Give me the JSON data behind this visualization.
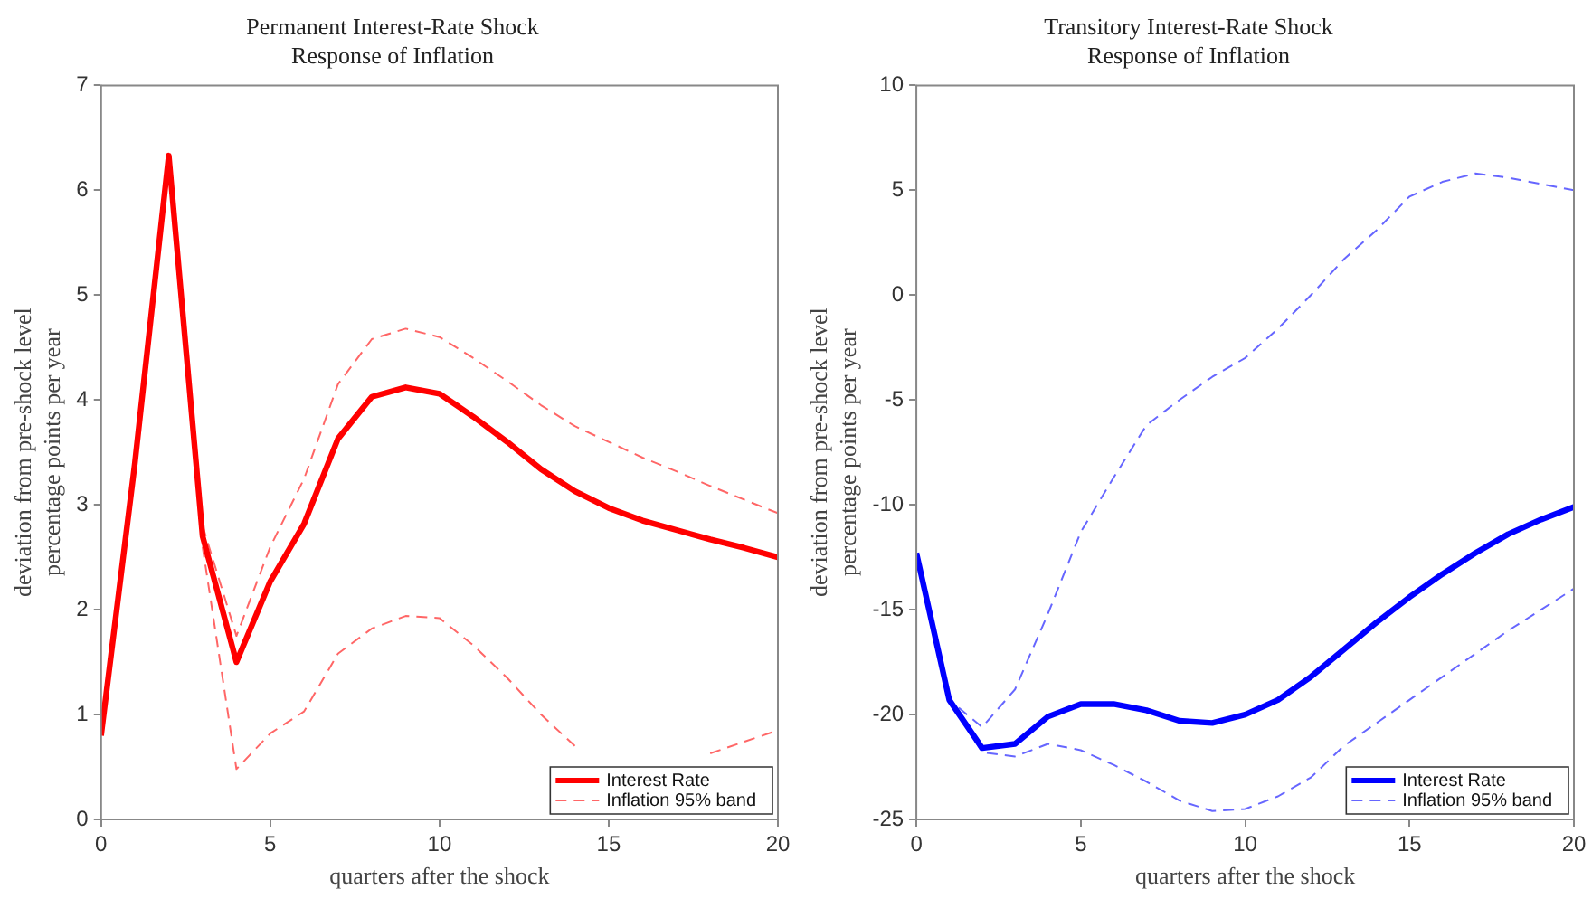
{
  "chart_data": [
    {
      "type": "line",
      "title": "Permanent Interest-Rate Shock",
      "subtitle": "Response of Inflation",
      "xlabel": "quarters after the shock",
      "ylabel": "deviation from pre-shock level\npercentage points per year",
      "x": [
        0,
        1,
        2,
        3,
        4,
        5,
        6,
        7,
        8,
        9,
        10,
        11,
        12,
        13,
        14,
        15,
        16,
        17,
        18,
        19,
        20
      ],
      "xlim": [
        0,
        20
      ],
      "xticks": [
        0,
        5,
        10,
        15,
        20
      ],
      "ylim": [
        0,
        7
      ],
      "yticks": [
        0,
        1,
        2,
        3,
        4,
        5,
        6,
        7
      ],
      "grid": false,
      "legend": "bottom right",
      "series": [
        {
          "name": "Interest Rate",
          "color": "#ff0000",
          "line_style": "solid",
          "values": [
            0.8,
            3.4,
            6.33,
            2.7,
            1.5,
            2.27,
            2.82,
            3.63,
            4.03,
            4.12,
            4.06,
            3.84,
            3.6,
            3.34,
            3.13,
            2.97,
            2.85,
            2.76,
            2.67,
            2.59,
            2.5
          ]
        },
        {
          "name": "Inflation 95% band",
          "color": "#ff6666",
          "line_style": "dashed",
          "values": [
            null,
            null,
            null,
            2.8,
            1.75,
            2.6,
            3.25,
            4.15,
            4.58,
            4.68,
            4.6,
            4.4,
            4.18,
            3.95,
            3.75,
            3.6,
            3.45,
            3.32,
            3.18,
            3.05,
            2.92
          ]
        },
        {
          "color": "#ff6666",
          "line_style": "dashed",
          "values": [
            null,
            null,
            null,
            2.6,
            0.48,
            0.82,
            1.03,
            1.58,
            1.82,
            1.94,
            1.92,
            1.66,
            1.35,
            1.0,
            0.7,
            null,
            null,
            null,
            0.63,
            0.74,
            0.85
          ]
        }
      ]
    },
    {
      "type": "line",
      "title": "Transitory Interest-Rate Shock",
      "subtitle": "Response of Inflation",
      "xlabel": "quarters after the shock",
      "ylabel": "deviation from pre-shock level\npercentage points per year",
      "x": [
        0,
        1,
        2,
        3,
        4,
        5,
        6,
        7,
        8,
        9,
        10,
        11,
        12,
        13,
        14,
        15,
        16,
        17,
        18,
        19,
        20
      ],
      "xlim": [
        0,
        20
      ],
      "xticks": [
        0,
        5,
        10,
        15,
        20
      ],
      "ylim": [
        -25,
        10
      ],
      "yticks": [
        -25,
        -20,
        -15,
        -10,
        -5,
        0,
        5,
        10
      ],
      "grid": false,
      "legend": "bottom right",
      "series": [
        {
          "name": "Interest Rate",
          "color": "#0000ff",
          "line_style": "solid",
          "values": [
            -12.3,
            -19.3,
            -21.6,
            -21.4,
            -20.1,
            -19.5,
            -19.5,
            -19.8,
            -20.3,
            -20.4,
            -20.0,
            -19.3,
            -18.2,
            -16.9,
            -15.6,
            -14.4,
            -13.3,
            -12.3,
            -11.4,
            -10.7,
            -10.1
          ]
        },
        {
          "name": "Inflation 95% band",
          "color": "#6666ff",
          "line_style": "dashed",
          "values": [
            -12.3,
            -19.3,
            -20.6,
            -18.8,
            -15.2,
            -11.3,
            -8.7,
            -6.2,
            -5.0,
            -3.9,
            -3.0,
            -1.6,
            0.0,
            1.7,
            3.1,
            4.7,
            5.4,
            5.8,
            5.6,
            5.3,
            5.0
          ]
        },
        {
          "color": "#6666ff",
          "line_style": "dashed",
          "values": [
            -12.3,
            -19.3,
            -21.8,
            -22.0,
            -21.4,
            -21.7,
            -22.4,
            -23.2,
            -24.1,
            -24.6,
            -24.5,
            -23.9,
            -23.0,
            -21.5,
            -20.4,
            -19.3,
            -18.2,
            -17.1,
            -16.0,
            -15.0,
            -14.0
          ]
        }
      ]
    }
  ]
}
